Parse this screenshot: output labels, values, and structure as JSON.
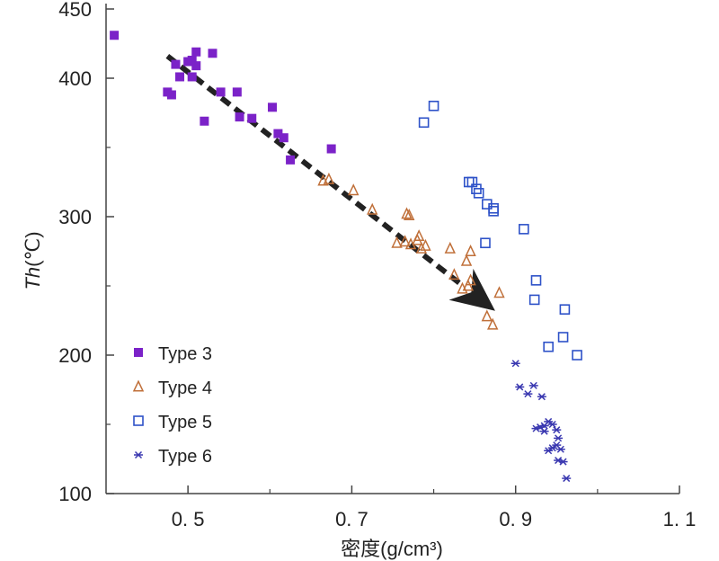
{
  "chart_data": {
    "type": "scatter",
    "xlabel": "密度(g/cm³)",
    "ylabel_italic": "Th",
    "ylabel_unit": "(℃)",
    "xlim": [
      0.4,
      1.1
    ],
    "ylim": [
      100,
      450
    ],
    "x_ticks": [
      {
        "value": 0.5,
        "label": "0. 5"
      },
      {
        "value": 0.7,
        "label": "0. 7"
      },
      {
        "value": 0.9,
        "label": "0. 9"
      },
      {
        "value": 1.1,
        "label": "1. 1"
      }
    ],
    "y_ticks": [
      {
        "value": 100,
        "label": "100"
      },
      {
        "value": 200,
        "label": "200"
      },
      {
        "value": 300,
        "label": "300"
      },
      {
        "value": 400,
        "label": "400"
      },
      {
        "value": 450,
        "label": "450"
      }
    ],
    "y_minor_ticks": [
      150,
      250,
      350
    ],
    "x_minor_ticks": [
      0.6,
      0.8,
      1.0
    ],
    "legend_position": "bottom-left",
    "arrow": {
      "from": [
        0.475,
        416
      ],
      "to": [
        0.875,
        232
      ],
      "style": "dashed",
      "color": "#222222"
    },
    "series": [
      {
        "name": "Type 3",
        "marker": "filled-square",
        "color": "#7B22C8",
        "points": [
          [
            0.41,
            431
          ],
          [
            0.475,
            390
          ],
          [
            0.48,
            388
          ],
          [
            0.485,
            410
          ],
          [
            0.49,
            401
          ],
          [
            0.5,
            412
          ],
          [
            0.505,
            413
          ],
          [
            0.51,
            419
          ],
          [
            0.51,
            409
          ],
          [
            0.505,
            401
          ],
          [
            0.52,
            369
          ],
          [
            0.53,
            418
          ],
          [
            0.54,
            390
          ],
          [
            0.56,
            390
          ],
          [
            0.563,
            372
          ],
          [
            0.578,
            371
          ],
          [
            0.603,
            379
          ],
          [
            0.61,
            360
          ],
          [
            0.617,
            357
          ],
          [
            0.625,
            341
          ],
          [
            0.675,
            349
          ]
        ]
      },
      {
        "name": "Type 4",
        "marker": "open-triangle",
        "color": "#C0703A",
        "points": [
          [
            0.665,
            326
          ],
          [
            0.672,
            327
          ],
          [
            0.702,
            319
          ],
          [
            0.725,
            305
          ],
          [
            0.755,
            281
          ],
          [
            0.765,
            282
          ],
          [
            0.767,
            302
          ],
          [
            0.77,
            301
          ],
          [
            0.772,
            280
          ],
          [
            0.78,
            283
          ],
          [
            0.782,
            286
          ],
          [
            0.785,
            277
          ],
          [
            0.79,
            279
          ],
          [
            0.82,
            277
          ],
          [
            0.825,
            258
          ],
          [
            0.84,
            268
          ],
          [
            0.845,
            275
          ],
          [
            0.845,
            254
          ],
          [
            0.835,
            248
          ],
          [
            0.842,
            250
          ],
          [
            0.865,
            228
          ],
          [
            0.872,
            222
          ],
          [
            0.88,
            245
          ]
        ]
      },
      {
        "name": "Type 5",
        "marker": "open-square",
        "color": "#2E52C8",
        "points": [
          [
            0.788,
            368
          ],
          [
            0.8,
            380
          ],
          [
            0.843,
            325
          ],
          [
            0.847,
            325
          ],
          [
            0.852,
            320
          ],
          [
            0.855,
            317
          ],
          [
            0.865,
            309
          ],
          [
            0.873,
            306
          ],
          [
            0.873,
            304
          ],
          [
            0.863,
            281
          ],
          [
            0.91,
            291
          ],
          [
            0.925,
            254
          ],
          [
            0.923,
            240
          ],
          [
            0.96,
            233
          ],
          [
            0.94,
            206
          ],
          [
            0.958,
            213
          ],
          [
            0.975,
            200
          ]
        ]
      },
      {
        "name": "Type 6",
        "marker": "asterisk",
        "color": "#3A38B0",
        "points": [
          [
            0.9,
            194
          ],
          [
            0.905,
            177
          ],
          [
            0.915,
            172
          ],
          [
            0.922,
            178
          ],
          [
            0.932,
            170
          ],
          [
            0.925,
            147
          ],
          [
            0.93,
            148
          ],
          [
            0.935,
            149
          ],
          [
            0.94,
            152
          ],
          [
            0.945,
            150
          ],
          [
            0.95,
            146
          ],
          [
            0.952,
            140
          ],
          [
            0.95,
            135
          ],
          [
            0.955,
            132
          ],
          [
            0.945,
            133
          ],
          [
            0.94,
            131
          ],
          [
            0.952,
            124
          ],
          [
            0.958,
            123
          ],
          [
            0.962,
            111
          ],
          [
            0.935,
            145
          ]
        ]
      }
    ]
  }
}
